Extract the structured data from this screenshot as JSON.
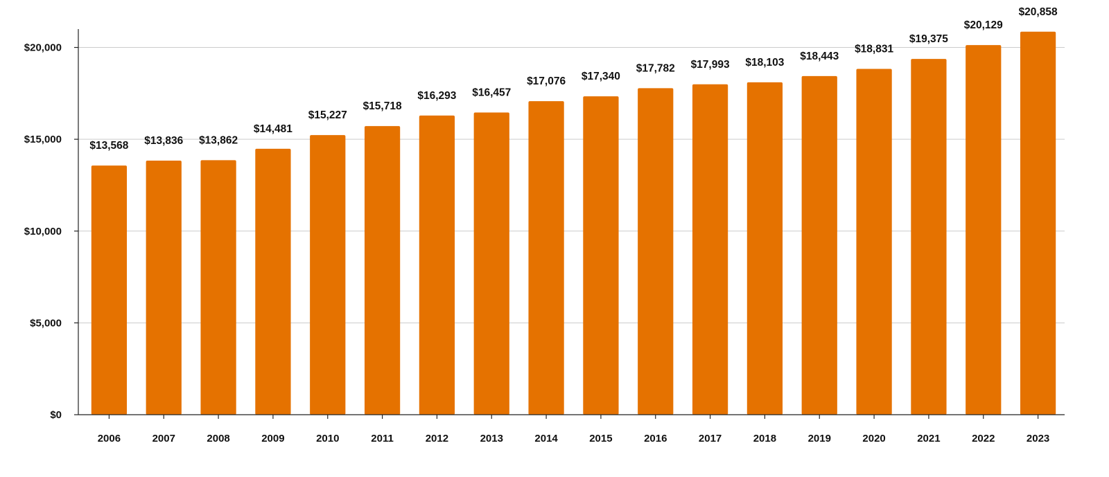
{
  "chart_data": {
    "type": "bar",
    "title": "",
    "xlabel": "",
    "ylabel": "",
    "categories": [
      "2006",
      "2007",
      "2008",
      "2009",
      "2010",
      "2011",
      "2012",
      "2013",
      "2014",
      "2015",
      "2016",
      "2017",
      "2018",
      "2019",
      "2020",
      "2021",
      "2022",
      "2023"
    ],
    "values": [
      13568,
      13836,
      13862,
      14481,
      15227,
      15718,
      16293,
      16457,
      17076,
      17340,
      17782,
      17993,
      18103,
      18443,
      18831,
      19375,
      20129,
      20858
    ],
    "data_labels": [
      "$13,568",
      "$13,836",
      "$13,862",
      "$14,481",
      "$15,227",
      "$15,718",
      "$16,293",
      "$16,457",
      "$17,076",
      "$17,340",
      "$17,782",
      "$17,993",
      "$18,103",
      "$18,443",
      "$18,831",
      "$19,375",
      "$20,129",
      "$20,858"
    ],
    "ylim": [
      0,
      21000
    ],
    "yticks": [
      0,
      5000,
      10000,
      15000,
      20000
    ],
    "ytick_labels": [
      "$0",
      "$5,000",
      "$10,000",
      "$15,000",
      "$20,000"
    ],
    "grid": true,
    "legend": "none",
    "bar_color": "#E57200"
  }
}
